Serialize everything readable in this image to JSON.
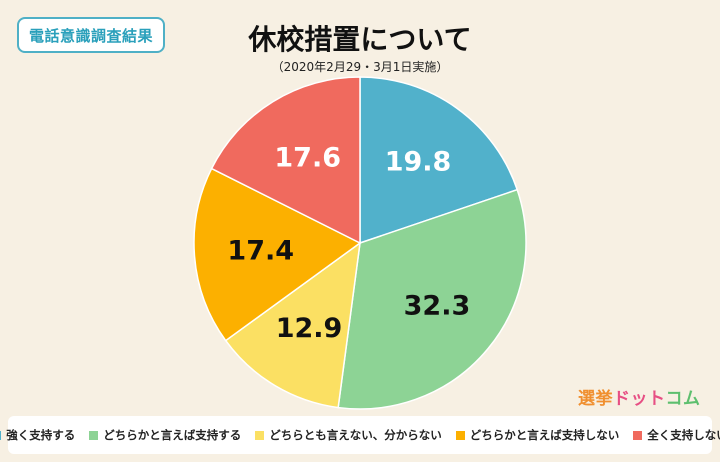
{
  "badge": "電話意識調査結果",
  "logo": "選挙ドットコム",
  "colors": {
    "background": "#f7f0e3",
    "accent": "#4fb0c6"
  },
  "chart_data": {
    "type": "pie",
    "title": "休校措置について",
    "subtitle": "（2020年2月29・3月1日実施）",
    "unit": "%",
    "legend_position": "bottom",
    "start_angle_deg": 0,
    "direction": "clockwise",
    "categories": [
      "強く支持する",
      "どちらかと言えば支持する",
      "どちらとも言えない、分からない",
      "どちらかと言えば支持しない",
      "全く支持しない"
    ],
    "values": [
      19.8,
      32.3,
      12.9,
      17.4,
      17.6
    ],
    "labels": [
      "19.8",
      "32.3",
      "12.9",
      "17.4",
      "17.6"
    ],
    "colors": [
      "#51b1cb",
      "#8dd395",
      "#fbe063",
      "#fcb000",
      "#f06a5e"
    ]
  }
}
